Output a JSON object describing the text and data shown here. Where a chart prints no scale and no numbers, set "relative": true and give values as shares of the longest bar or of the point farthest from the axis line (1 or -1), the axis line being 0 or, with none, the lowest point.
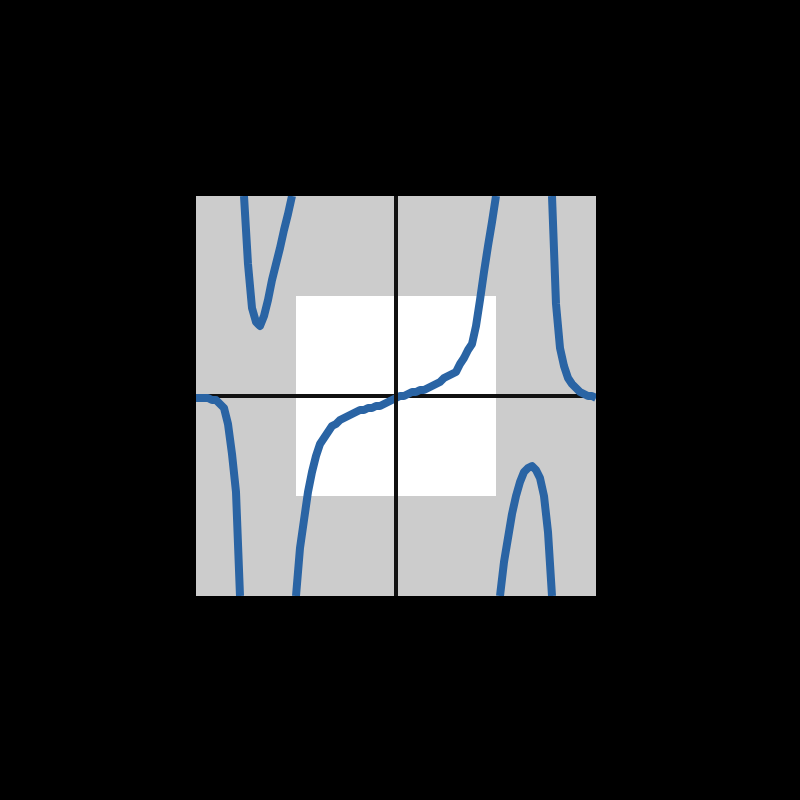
{
  "chart_data": {
    "type": "line",
    "relative": true,
    "line_style": "solid",
    "categories": [
      null,
      null,
      null,
      null,
      null,
      null,
      null,
      null,
      null,
      null,
      null,
      null,
      null,
      null,
      null,
      null,
      null,
      null,
      null,
      null,
      null,
      null,
      null,
      null,
      null,
      null,
      null,
      null,
      null,
      null,
      null,
      null,
      null,
      null,
      null,
      null,
      null,
      null,
      null,
      null,
      null,
      null,
      null,
      null,
      null,
      null,
      null,
      null,
      null,
      null,
      null,
      null,
      null,
      null,
      null,
      null,
      null,
      null,
      null,
      null,
      null,
      null,
      null,
      null,
      null,
      null,
      null,
      null,
      null,
      null,
      null,
      null,
      null,
      null,
      null,
      null,
      null,
      null,
      null,
      null,
      null,
      null,
      null,
      null,
      null,
      null,
      null,
      null,
      null,
      null,
      null,
      null,
      null,
      null,
      null,
      null,
      null,
      null,
      null,
      null,
      null
    ],
    "series": [
      {
        "color": "#2a64a4",
        "values": [
          -0.01,
          -0.01,
          -0.01,
          -0.01,
          -0.02,
          -0.02,
          -0.04,
          -0.06,
          -0.14,
          -0.29,
          -0.48,
          -1.0,
          null,
          null,
          null,
          null,
          null,
          null,
          null,
          null,
          null,
          null,
          null,
          null,
          null,
          null,
          null,
          null,
          null,
          null,
          null,
          null,
          null,
          null,
          null,
          null,
          null,
          null,
          null,
          null,
          null,
          null,
          null,
          null,
          null,
          null,
          null,
          null,
          null,
          null,
          null,
          null,
          null,
          null,
          null,
          null,
          null,
          null,
          null,
          null,
          null,
          null,
          null,
          null,
          null,
          null,
          null,
          null,
          null,
          null,
          null,
          null,
          null,
          null,
          null,
          null,
          null,
          null,
          null,
          null,
          null,
          null,
          null,
          null,
          null,
          null,
          null,
          null,
          null,
          null,
          null,
          null,
          null,
          null,
          null,
          null,
          null,
          null,
          null,
          null,
          null
        ]
      },
      {
        "color": "#2a64a4",
        "values": [
          null,
          null,
          null,
          null,
          null,
          null,
          null,
          null,
          null,
          null,
          null,
          null,
          1.0,
          0.66,
          0.44,
          0.37,
          0.35,
          0.4,
          0.48,
          0.58,
          0.66,
          0.74,
          0.83,
          0.91,
          1.0,
          null,
          null,
          null,
          null,
          null,
          null,
          null,
          null,
          null,
          null,
          null,
          null,
          null,
          null,
          null,
          null,
          null,
          null,
          null,
          null,
          null,
          null,
          null,
          null,
          null,
          null,
          null,
          null,
          null,
          null,
          null,
          null,
          null,
          null,
          null,
          null,
          null,
          null,
          null,
          null,
          null,
          null,
          null,
          null,
          null,
          null,
          null,
          null,
          null,
          null,
          null,
          null,
          null,
          null,
          null,
          null,
          null,
          null,
          null,
          null,
          null,
          null,
          null,
          null,
          null,
          null,
          null,
          null,
          null,
          null,
          null,
          null,
          null,
          null,
          null,
          null
        ]
      },
      {
        "color": "#2a64a4",
        "values": [
          null,
          null,
          null,
          null,
          null,
          null,
          null,
          null,
          null,
          null,
          null,
          null,
          null,
          null,
          null,
          null,
          null,
          null,
          null,
          null,
          null,
          null,
          null,
          null,
          null,
          -1.0,
          -0.76,
          -0.62,
          -0.48,
          -0.38,
          -0.3,
          -0.24,
          -0.21,
          -0.18,
          -0.15,
          -0.14,
          -0.12,
          -0.11,
          -0.1,
          -0.09,
          -0.08,
          -0.07,
          -0.07,
          -0.06,
          -0.06,
          -0.05,
          -0.05,
          -0.04,
          -0.03,
          -0.02,
          -0.01,
          0.0,
          0.0,
          0.01,
          0.02,
          0.02,
          0.03,
          0.03,
          0.04,
          0.05,
          0.06,
          0.07,
          0.09,
          0.1,
          0.11,
          0.12,
          0.16,
          0.19,
          0.23,
          0.26,
          0.35,
          0.48,
          0.62,
          0.75,
          0.87,
          1.0,
          null,
          null,
          null,
          null,
          null,
          null,
          null,
          null,
          null,
          null,
          null,
          null,
          null,
          null,
          null,
          null,
          null,
          null,
          null,
          null,
          null,
          null,
          null,
          null,
          null
        ]
      },
      {
        "color": "#2a64a4",
        "values": [
          null,
          null,
          null,
          null,
          null,
          null,
          null,
          null,
          null,
          null,
          null,
          null,
          null,
          null,
          null,
          null,
          null,
          null,
          null,
          null,
          null,
          null,
          null,
          null,
          null,
          null,
          null,
          null,
          null,
          null,
          null,
          null,
          null,
          null,
          null,
          null,
          null,
          null,
          null,
          null,
          null,
          null,
          null,
          null,
          null,
          null,
          null,
          null,
          null,
          null,
          null,
          null,
          null,
          null,
          null,
          null,
          null,
          null,
          null,
          null,
          null,
          null,
          null,
          null,
          null,
          null,
          null,
          null,
          null,
          null,
          null,
          null,
          null,
          null,
          null,
          null,
          -1.0,
          -0.83,
          -0.71,
          -0.59,
          -0.5,
          -0.43,
          -0.38,
          -0.36,
          -0.35,
          -0.37,
          -0.41,
          -0.5,
          -0.68,
          -1.0,
          null,
          null,
          null,
          null,
          null,
          null,
          null,
          null,
          null,
          null,
          null
        ]
      },
      {
        "color": "#2a64a4",
        "values": [
          null,
          null,
          null,
          null,
          null,
          null,
          null,
          null,
          null,
          null,
          null,
          null,
          null,
          null,
          null,
          null,
          null,
          null,
          null,
          null,
          null,
          null,
          null,
          null,
          null,
          null,
          null,
          null,
          null,
          null,
          null,
          null,
          null,
          null,
          null,
          null,
          null,
          null,
          null,
          null,
          null,
          null,
          null,
          null,
          null,
          null,
          null,
          null,
          null,
          null,
          null,
          null,
          null,
          null,
          null,
          null,
          null,
          null,
          null,
          null,
          null,
          null,
          null,
          null,
          null,
          null,
          null,
          null,
          null,
          null,
          null,
          null,
          null,
          null,
          null,
          null,
          null,
          null,
          null,
          null,
          null,
          null,
          null,
          null,
          null,
          null,
          null,
          null,
          null,
          1.0,
          0.46,
          0.24,
          0.15,
          0.09,
          0.06,
          0.04,
          0.02,
          0.01,
          0.0,
          0.0,
          -0.01
        ]
      }
    ]
  }
}
